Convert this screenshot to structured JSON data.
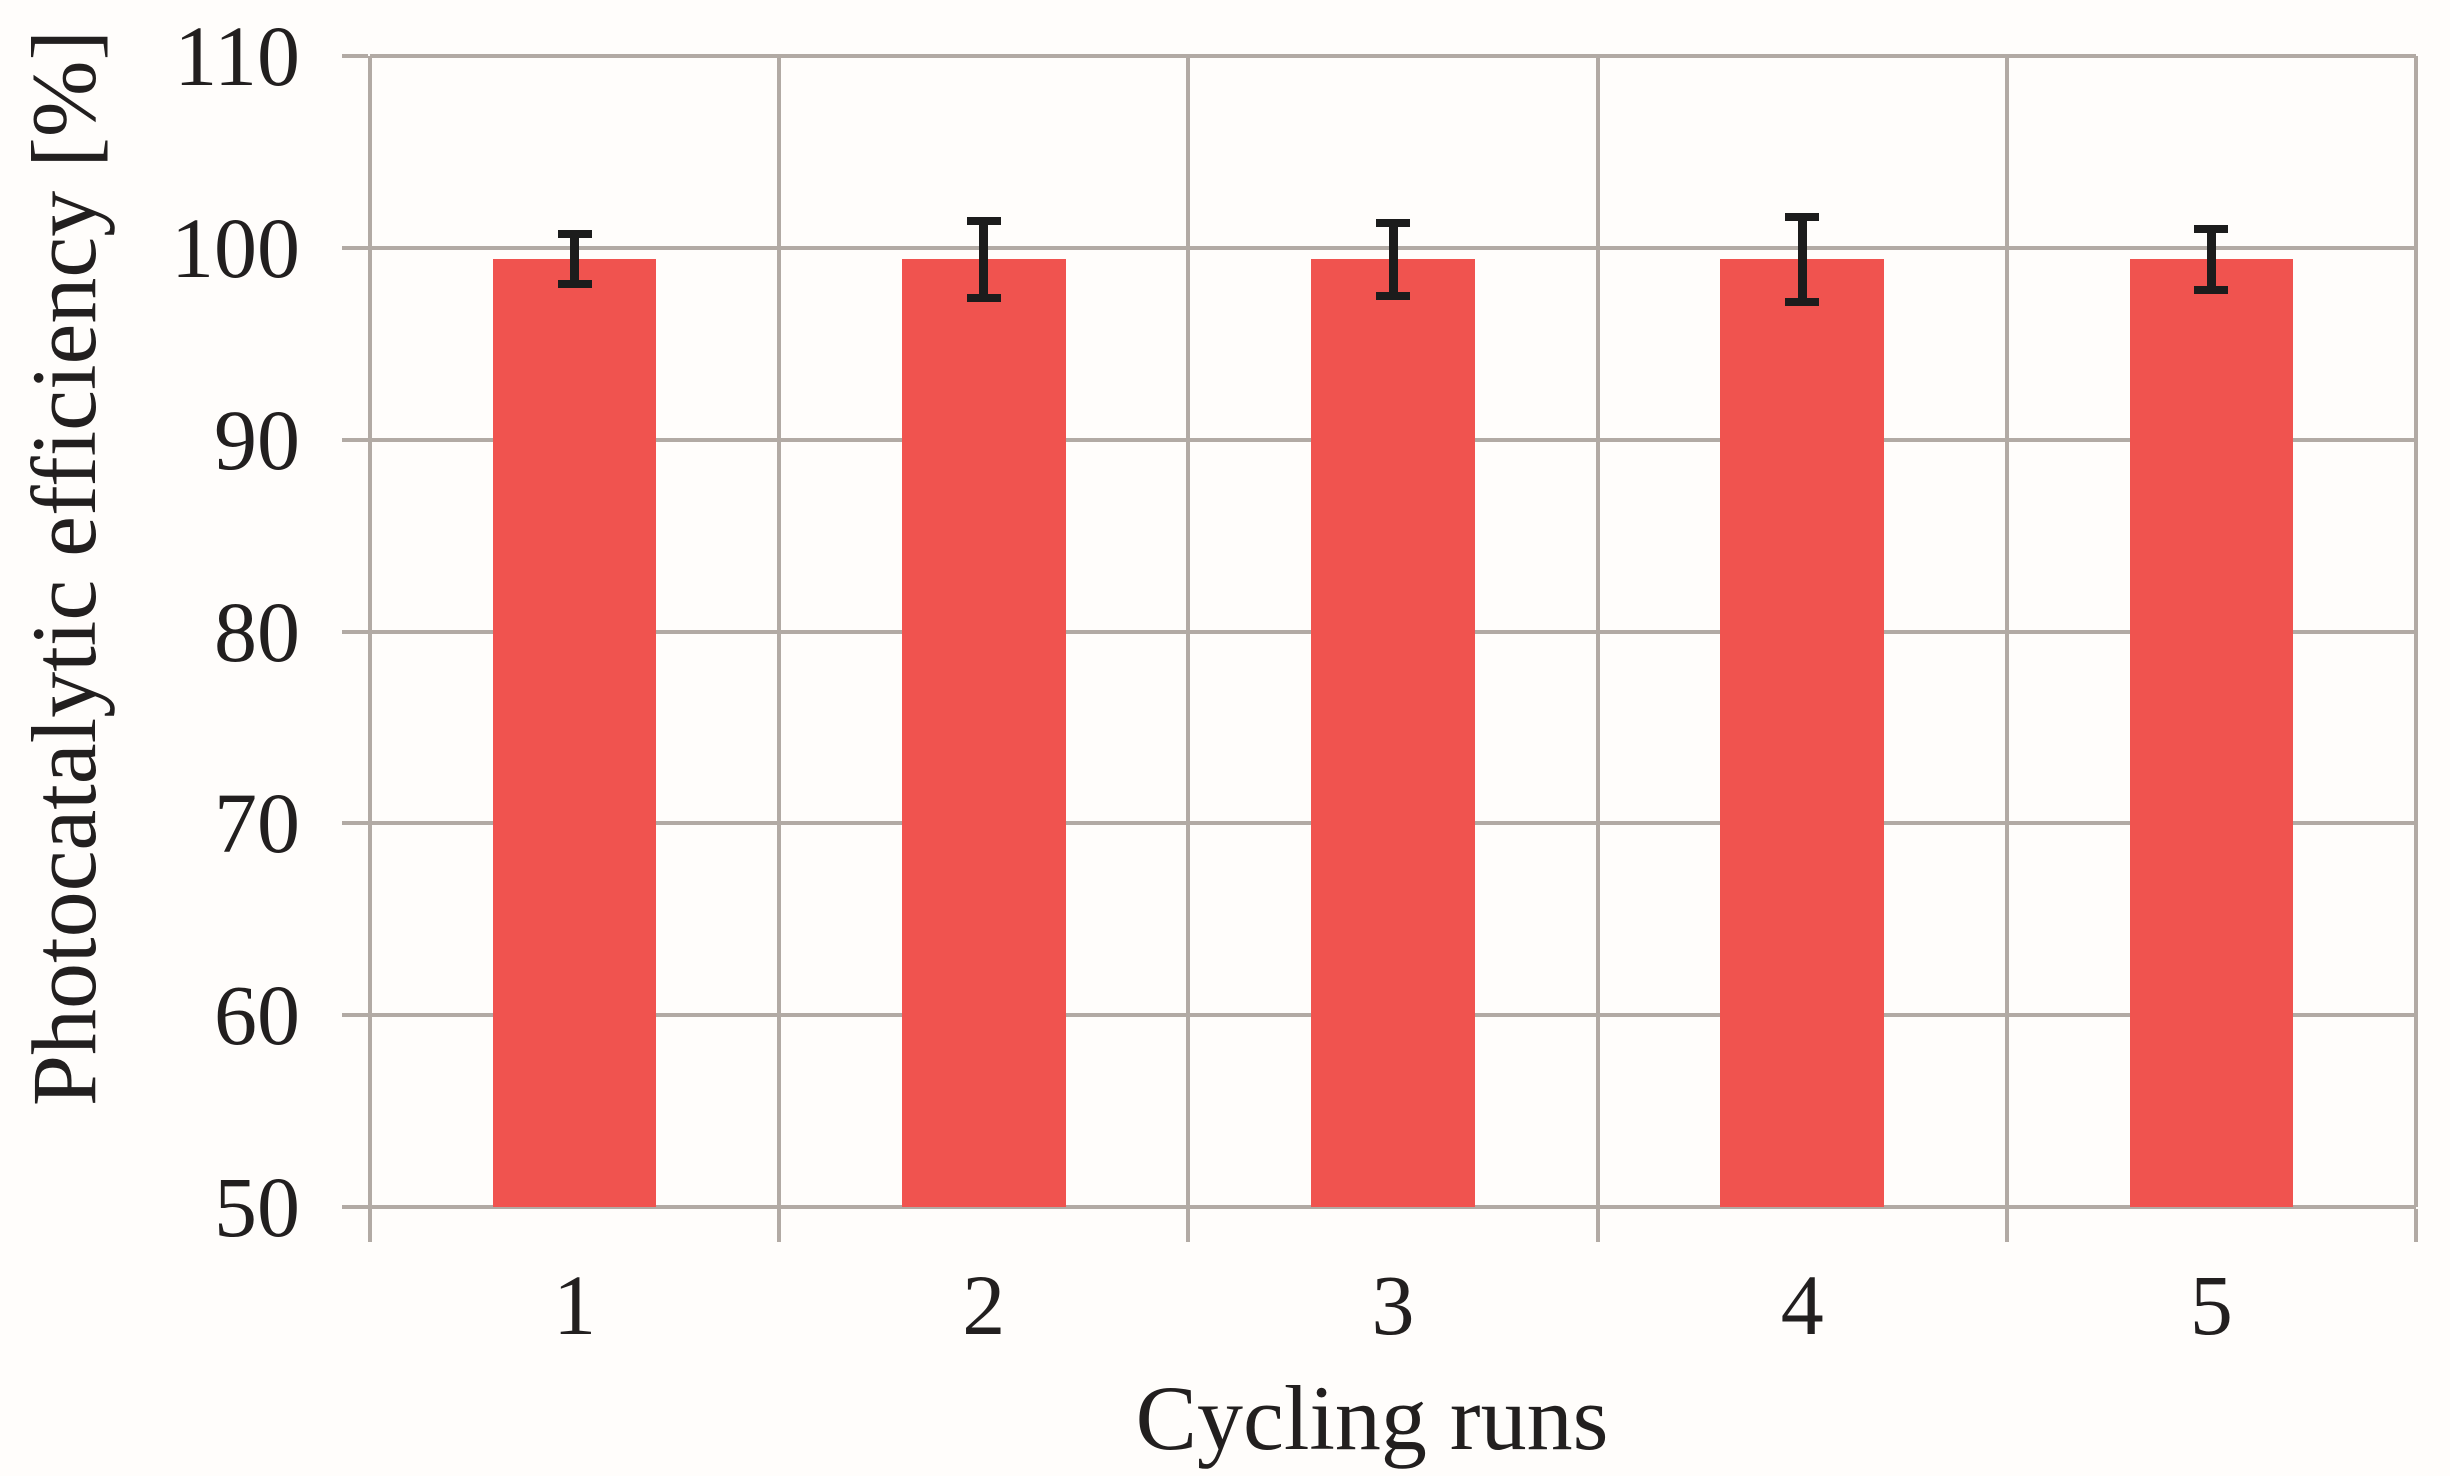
{
  "chart_data": {
    "type": "bar",
    "title": "",
    "xlabel": "Cycling runs",
    "ylabel": "Photocatalytic efficiency [%]",
    "categories": [
      "1",
      "2",
      "3",
      "4",
      "5"
    ],
    "values": [
      99.4,
      99.4,
      99.4,
      99.4,
      99.4
    ],
    "error_plus": [
      1.3,
      2.0,
      1.9,
      2.2,
      1.6
    ],
    "error_minus": [
      1.3,
      2.0,
      1.9,
      2.2,
      1.6
    ],
    "ylim": [
      50,
      110
    ],
    "yticks": [
      50,
      60,
      70,
      80,
      90,
      100,
      110
    ],
    "grid": "both",
    "legend_position": "none",
    "bar_color": "#f0534f",
    "grid_color": "#b2aaa4",
    "error_color": "#1c1c1c",
    "text_color": "#221f1f",
    "background": "#fffdfb"
  }
}
